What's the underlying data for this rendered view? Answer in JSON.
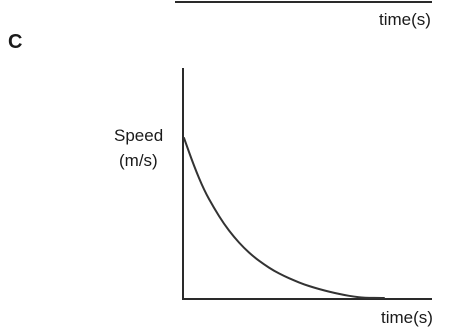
{
  "panel_letter": "C",
  "prev_panel": {
    "xlabel": "time(s)"
  },
  "chart_data": {
    "type": "line",
    "title": "",
    "xlabel": "time(s)",
    "ylabel_line1": "Speed",
    "ylabel_line2": "(m/s)",
    "xlim": [
      0,
      10
    ],
    "ylim": [
      0,
      10
    ],
    "grid": false,
    "legend": "none",
    "line_color": "#333333",
    "series": [
      {
        "x": [
          0,
          0.5,
          1,
          1.5,
          2,
          2.5,
          3,
          3.5,
          4,
          4.5,
          5,
          5.5,
          6,
          6.5,
          7,
          7.5,
          8,
          8.5,
          9,
          10
        ],
        "y": [
          8.0,
          6.6,
          5.4,
          4.5,
          3.7,
          3.05,
          2.5,
          2.05,
          1.68,
          1.36,
          1.1,
          0.88,
          0.68,
          0.52,
          0.38,
          0.26,
          0.15,
          0.07,
          0.01,
          0.0
        ]
      }
    ]
  }
}
